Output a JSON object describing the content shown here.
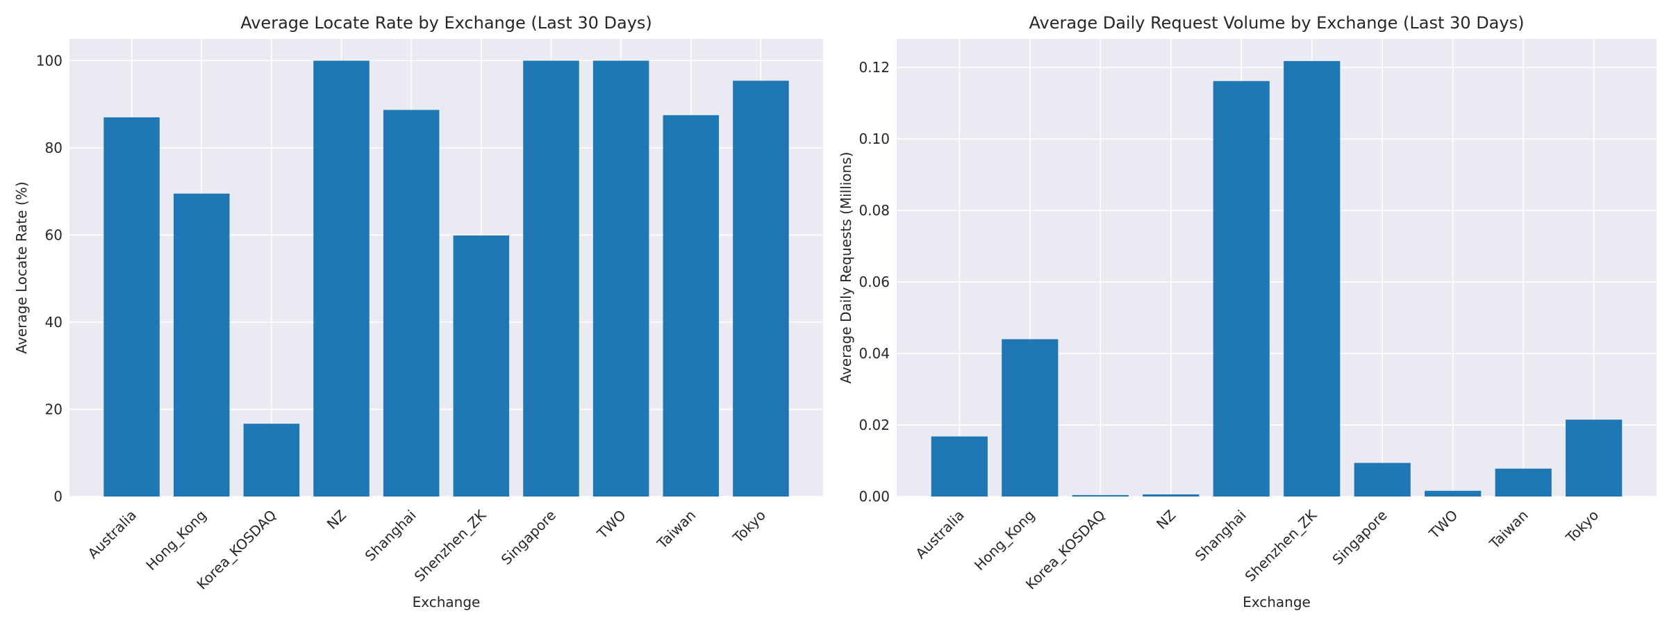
{
  "chart_data": [
    {
      "type": "bar",
      "title": "Average Locate Rate by Exchange (Last 30 Days)",
      "xlabel": "Exchange",
      "ylabel": "Average Locate Rate (%)",
      "categories": [
        "Australia",
        "Hong_Kong",
        "Korea_KOSDAQ",
        "NZ",
        "Shanghai",
        "Shenzhen_ZK",
        "Singapore",
        "TWO",
        "Taiwan",
        "Tokyo"
      ],
      "values": [
        87.0,
        69.5,
        16.7,
        100.0,
        88.7,
        59.9,
        100.0,
        100.0,
        87.5,
        95.4
      ],
      "ylim": [
        0,
        105
      ],
      "yticks": [
        0,
        20,
        40,
        60,
        80,
        100
      ],
      "ytick_labels": [
        "0",
        "20",
        "40",
        "60",
        "80",
        "100"
      ],
      "grid": true,
      "bar_color": "#1f77b4"
    },
    {
      "type": "bar",
      "title": "Average Daily Request Volume by Exchange (Last 30 Days)",
      "xlabel": "Exchange",
      "ylabel": "Average Daily Requests (Millions)",
      "categories": [
        "Australia",
        "Hong_Kong",
        "Korea_KOSDAQ",
        "NZ",
        "Shanghai",
        "Shenzhen_ZK",
        "Singapore",
        "TWO",
        "Taiwan",
        "Tokyo"
      ],
      "values": [
        0.0168,
        0.044,
        0.0004,
        0.0006,
        0.1162,
        0.1218,
        0.0094,
        0.0016,
        0.0078,
        0.0215
      ],
      "ylim": [
        0,
        0.128
      ],
      "yticks": [
        0,
        0.02,
        0.04,
        0.06,
        0.08,
        0.1,
        0.12
      ],
      "ytick_labels": [
        "0.00",
        "0.02",
        "0.04",
        "0.06",
        "0.08",
        "0.10",
        "0.12"
      ],
      "grid": true,
      "bar_color": "#1f77b4"
    }
  ]
}
